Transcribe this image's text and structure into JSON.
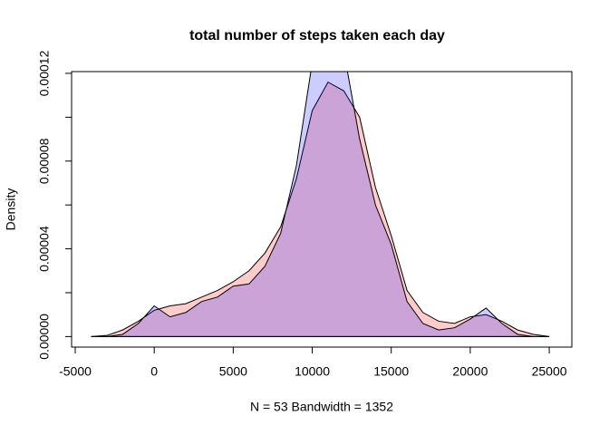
{
  "chart_data": {
    "type": "density",
    "title": "total number of steps taken each day",
    "xlabel": "N = 53   Bandwidth = 1352",
    "ylabel": "Density",
    "x": [
      -4000,
      -3000,
      -2000,
      -1000,
      0,
      1000,
      2000,
      3000,
      4000,
      5000,
      6000,
      7000,
      8000,
      9000,
      10000,
      11000,
      12000,
      13000,
      14000,
      15000,
      16000,
      17000,
      18000,
      19000,
      20000,
      21000,
      22000,
      23000,
      24000,
      25000
    ],
    "series": [
      {
        "color": "rgba(255,0,0,0.2)",
        "values": [
          0,
          5e-07,
          3e-06,
          7e-06,
          1.2e-05,
          1.4e-05,
          1.5e-05,
          1.8e-05,
          2.1e-05,
          2.5e-05,
          3e-05,
          3.8e-05,
          5e-05,
          7.2e-05,
          0.000103,
          0.000116,
          0.000112,
          0.0001,
          6.8e-05,
          4.6e-05,
          2.1e-05,
          1.1e-05,
          7e-06,
          6e-06,
          9e-06,
          1e-05,
          7e-06,
          3e-06,
          1e-06,
          0
        ]
      },
      {
        "color": "rgba(0,0,255,0.2)",
        "values": [
          0,
          0,
          1e-06,
          6e-06,
          1.4e-05,
          9e-06,
          1.1e-05,
          1.6e-05,
          1.8e-05,
          2.3e-05,
          2.4e-05,
          3.2e-05,
          4.7e-05,
          7.8e-05,
          0.000125,
          0.000145,
          0.00013,
          9e-05,
          6e-05,
          4.2e-05,
          1.6e-05,
          6e-06,
          3e-06,
          4e-06,
          8e-06,
          1.3e-05,
          6e-06,
          1e-06,
          0,
          0
        ]
      }
    ],
    "xlim": [
      -5230,
      26430
    ],
    "ylim": [
      -4.8e-06,
      0.0001208
    ],
    "xticks": [
      -5000,
      0,
      5000,
      10000,
      15000,
      20000,
      25000
    ],
    "yticks": [
      {
        "value": 0,
        "label": "0.00000"
      },
      4e-05,
      8e-05,
      0.00012
    ],
    "yminor_ticks": [
      2e-05,
      6e-05,
      0.0001
    ]
  }
}
